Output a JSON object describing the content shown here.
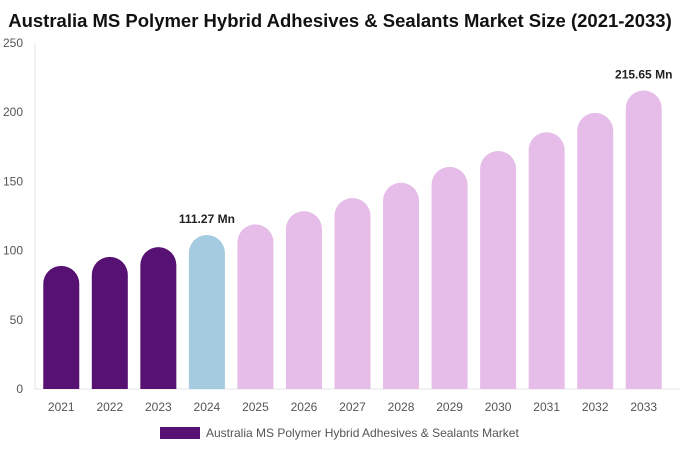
{
  "chart_data": {
    "type": "bar",
    "title": "Australia MS Polymer Hybrid Adhesives & Sealants Market Size (2021-2033)",
    "categories": [
      "2021",
      "2022",
      "2023",
      "2024",
      "2025",
      "2026",
      "2027",
      "2028",
      "2029",
      "2030",
      "2031",
      "2032",
      "2033"
    ],
    "series": [
      {
        "name": "Australia MS Polymer Hybrid Adhesives & Sealants Market",
        "values": [
          89,
          95.5,
          102.5,
          111.27,
          119,
          128.5,
          138,
          149,
          160.5,
          172,
          185.5,
          199.5,
          215.65
        ]
      }
    ],
    "bar_colors": [
      "#561172",
      "#561172",
      "#561172",
      "#a4cbdf",
      "#e6bde9",
      "#e6bde9",
      "#e6bde9",
      "#e6bde9",
      "#e6bde9",
      "#e6bde9",
      "#e6bde9",
      "#e6bde9",
      "#e6bde9"
    ],
    "data_labels": {
      "3": "111.27 Mn",
      "12": "215.65 Mn"
    },
    "yticks": [
      0,
      50,
      100,
      150,
      200,
      250
    ],
    "ylim": [
      0,
      250
    ],
    "xlabel": "",
    "ylabel": "",
    "grid": false,
    "legend": "bottom"
  }
}
